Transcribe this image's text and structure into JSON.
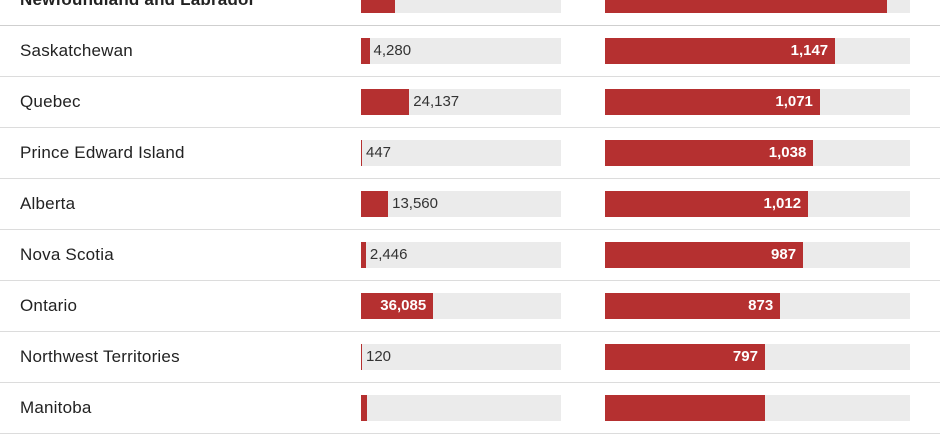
{
  "colors": {
    "bar": "#b53030",
    "track": "#ebebeb",
    "text": "#222222"
  },
  "chart_data": {
    "type": "bar",
    "categories": [
      "Newfoundland and Labrador",
      "Saskatchewan",
      "Quebec",
      "Prince Edward Island",
      "Alberta",
      "Nova Scotia",
      "Ontario",
      "Northwest Territories",
      "Manitoba"
    ],
    "series": [
      {
        "values": [
          null,
          4280,
          24137,
          447,
          13560,
          2446,
          36085,
          120,
          null
        ],
        "labels": [
          "",
          "4,280",
          "24,137",
          "447",
          "13,560",
          "2,446",
          "36,085",
          "120",
          ""
        ],
        "scale_max": 100000
      },
      {
        "values": [
          null,
          1147,
          1071,
          1038,
          1012,
          987,
          873,
          797,
          796
        ],
        "labels": [
          "",
          "1,147",
          "1,071",
          "1,038",
          "1,012",
          "987",
          "873",
          "797",
          ""
        ],
        "scale_max": 1520
      }
    ]
  }
}
